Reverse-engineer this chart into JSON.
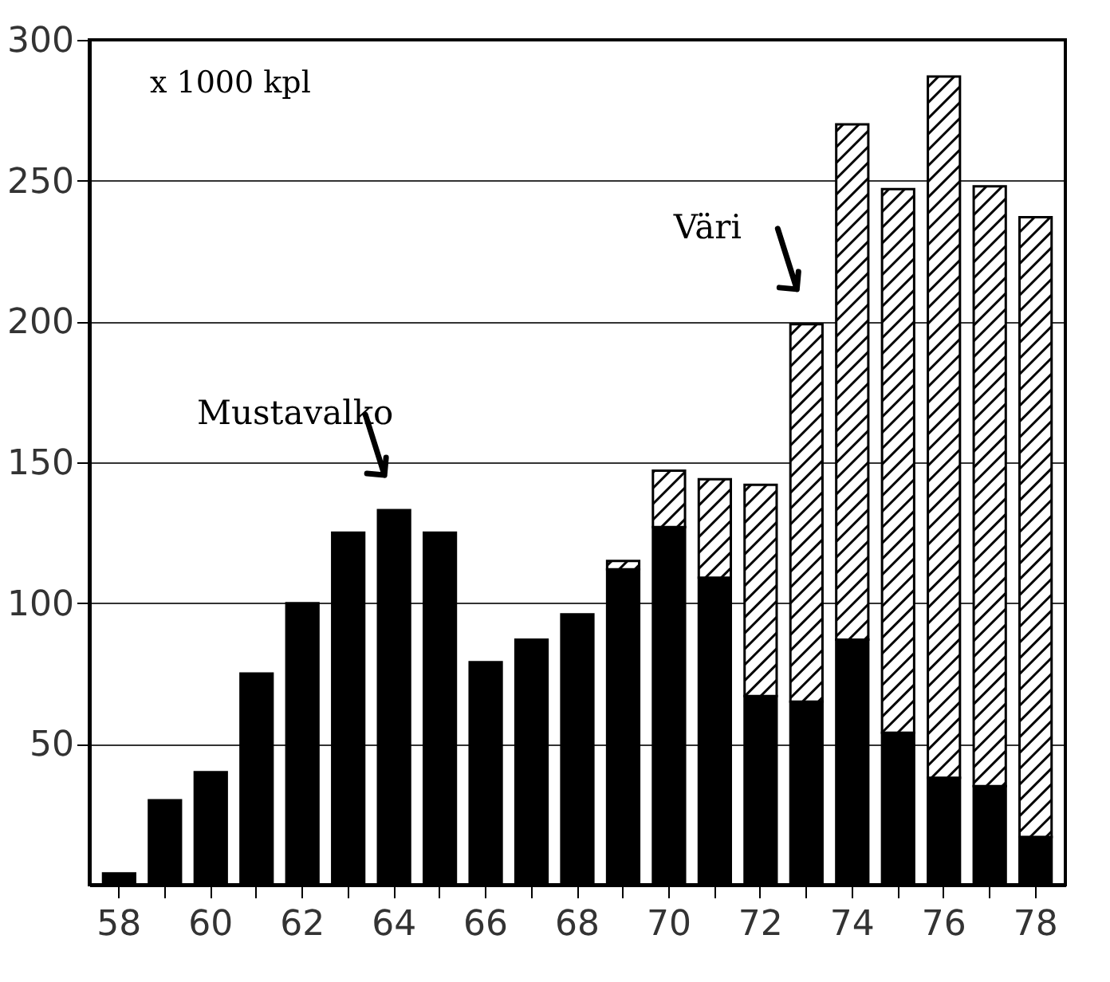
{
  "chart_data": {
    "type": "bar",
    "stacked": true,
    "categories": [
      "58",
      null,
      "60",
      null,
      "62",
      null,
      "64",
      null,
      "66",
      null,
      "68",
      null,
      "70",
      null,
      "72",
      null,
      "74",
      null,
      "76",
      null,
      "78"
    ],
    "series": [
      {
        "name": "Mustavalko",
        "color": "#000000",
        "values": [
          4,
          30,
          40,
          75,
          100,
          125,
          133,
          125,
          79,
          87,
          96,
          112,
          127,
          109,
          67,
          65,
          87,
          54,
          38,
          35,
          17
        ]
      },
      {
        "name": "Väri",
        "color": "#000000",
        "values": [
          null,
          null,
          null,
          null,
          null,
          null,
          null,
          null,
          null,
          null,
          null,
          3,
          20,
          35,
          75,
          134,
          183,
          193,
          249,
          213,
          220
        ]
      }
    ],
    "ylim": [
      0,
      300
    ],
    "yticks": [
      50,
      100,
      150,
      200,
      250,
      300
    ],
    "grid": "y",
    "annotations": [
      "x 1000 kpl"
    ]
  }
}
